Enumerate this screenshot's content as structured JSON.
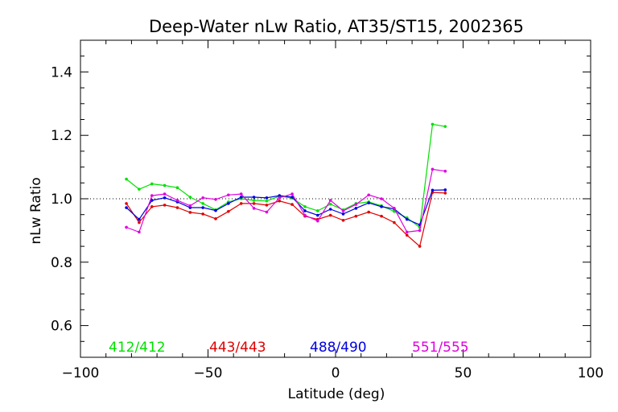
{
  "chart_data": {
    "type": "line",
    "title": "Deep-Water nLw Ratio, AT35/ST15, 2002365",
    "xlabel": "Latitude (deg)",
    "ylabel": "nLw Ratio",
    "xlim": [
      -100,
      100
    ],
    "ylim": [
      0.5,
      1.5
    ],
    "x_ticks": [
      -100,
      -50,
      0,
      50,
      100
    ],
    "x_tick_labels": [
      "−100",
      "−50",
      "0",
      "50",
      "100"
    ],
    "y_ticks": [
      0.6,
      0.8,
      1.0,
      1.2,
      1.4
    ],
    "y_tick_labels": [
      "0.6",
      "0.8",
      "1.0",
      "1.2",
      "1.4"
    ],
    "reference_line": 1.0,
    "x": [
      -82,
      -77,
      -72,
      -67,
      -62,
      -57,
      -52,
      -47,
      -42,
      -37,
      -32,
      -27,
      -22,
      -17,
      -12,
      -7,
      -2,
      3,
      8,
      13,
      18,
      23,
      28,
      33,
      38,
      43
    ],
    "series": [
      {
        "name": "412/412",
        "color": "#00e000",
        "values": [
          1.062,
          1.03,
          1.047,
          1.042,
          1.035,
          1.005,
          0.985,
          0.965,
          0.99,
          1.0,
          0.995,
          0.993,
          1.008,
          1.002,
          0.975,
          0.962,
          0.983,
          0.965,
          0.985,
          0.99,
          0.978,
          0.96,
          0.94,
          0.91,
          1.235,
          1.228
        ]
      },
      {
        "name": "443/443",
        "color": "#e00000",
        "values": [
          0.985,
          0.925,
          0.975,
          0.98,
          0.972,
          0.957,
          0.952,
          0.937,
          0.96,
          0.985,
          0.985,
          0.98,
          0.993,
          0.982,
          0.945,
          0.935,
          0.948,
          0.932,
          0.945,
          0.958,
          0.945,
          0.925,
          0.885,
          0.85,
          1.02,
          1.018
        ]
      },
      {
        "name": "488/490",
        "color": "#0000e0",
        "values": [
          0.972,
          0.935,
          0.995,
          1.003,
          0.99,
          0.972,
          0.972,
          0.963,
          0.985,
          1.005,
          1.005,
          1.003,
          1.01,
          1.005,
          0.962,
          0.948,
          0.967,
          0.952,
          0.97,
          0.987,
          0.975,
          0.968,
          0.935,
          0.918,
          1.027,
          1.028
        ]
      },
      {
        "name": "551/555",
        "color": "#e000e0",
        "values": [
          0.91,
          0.895,
          1.01,
          1.015,
          0.995,
          0.978,
          1.003,
          0.998,
          1.012,
          1.015,
          0.97,
          0.958,
          1.003,
          1.015,
          0.948,
          0.93,
          0.995,
          0.962,
          0.982,
          1.012,
          1.0,
          0.97,
          0.895,
          0.9,
          1.093,
          1.087
        ]
      }
    ]
  }
}
